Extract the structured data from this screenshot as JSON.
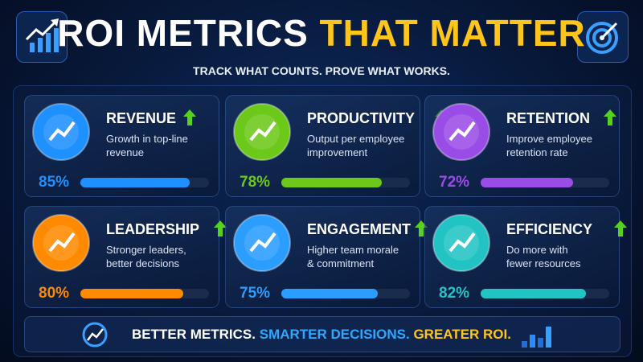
{
  "header": {
    "title": [
      "ROI METRICS",
      "THAT MATTER"
    ],
    "subtitle": "TRACK WHAT COUNTS. PROVE WHAT WORKS."
  },
  "cards": [
    {
      "title": "REVENUE",
      "description": [
        "Growth in top-line",
        "revenue"
      ],
      "percent": {
        "value": 85,
        "label": "85%"
      },
      "color": "#1e90ff"
    },
    {
      "title": "PRODUCTIVITY",
      "description": [
        "Output per employee",
        "improvement"
      ],
      "percent": {
        "value": 78,
        "label": "78%"
      },
      "color": "#6cc91a"
    },
    {
      "title": "RETENTION",
      "description": [
        "Improve employee",
        "retention rate"
      ],
      "percent": {
        "value": 72,
        "label": "72%"
      },
      "color": "#9a4de6"
    },
    {
      "title": "LEADERSHIP",
      "description": [
        "Stronger leaders,",
        "better decisions"
      ],
      "percent": {
        "value": 80,
        "label": "80%"
      },
      "color": "#ff8a00"
    },
    {
      "title": "ENGAGEMENT",
      "description": [
        "Higher team morale",
        "& commitment"
      ],
      "percent": {
        "value": 75,
        "label": "75%"
      },
      "color": "#2a9dff"
    },
    {
      "title": "EFFICIENCY",
      "description": [
        "Do more with",
        "fewer resources"
      ],
      "percent": {
        "value": 82,
        "label": "82%"
      },
      "color": "#22c3c3"
    }
  ],
  "footer": [
    "BETTER METRICS.",
    "SMARTER DECISIONS.",
    "GREATER ROI."
  ]
}
